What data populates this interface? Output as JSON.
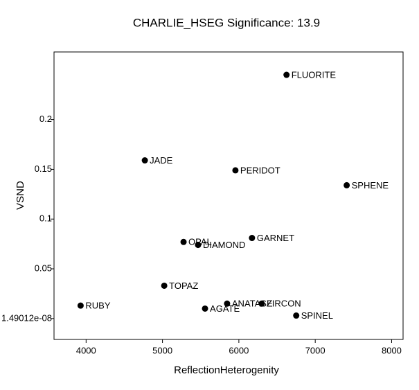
{
  "chart_data": {
    "type": "scatter",
    "title": "CHARLIE_HSEG  Significance:  13.9",
    "x_label": "ReflectionHeterogenity",
    "y_label": "VSND",
    "labels": [
      "FLUORITE",
      "JADE",
      "PERIDOT",
      "SPHENE",
      "GARNET",
      "OPAL",
      "DIAMOND",
      "TOPAZ",
      "RUBY",
      "AGATE",
      "ANATASE",
      "ZIRCON",
      "SPINEL"
    ],
    "x": [
      6624,
      4769,
      5955,
      7412,
      6172,
      5276,
      5466,
      5023,
      3928,
      5557,
      5846,
      6299,
      6751
    ],
    "values": [
      0.245,
      0.159,
      0.149,
      0.134,
      0.081,
      0.077,
      0.074,
      0.033,
      0.013,
      0.01,
      0.015,
      0.015,
      0.003
    ],
    "color": "#000000",
    "xlim": [
      3580,
      8150
    ],
    "ylim": [
      -0.021,
      0.268
    ],
    "xticks": [
      4000,
      5000,
      6000,
      7000,
      8000
    ],
    "yticks": [
      {
        "value": 1.49012e-08,
        "label": "1.49012e-08"
      },
      0.05,
      0.1,
      0.15,
      0.2
    ],
    "grid": false
  }
}
